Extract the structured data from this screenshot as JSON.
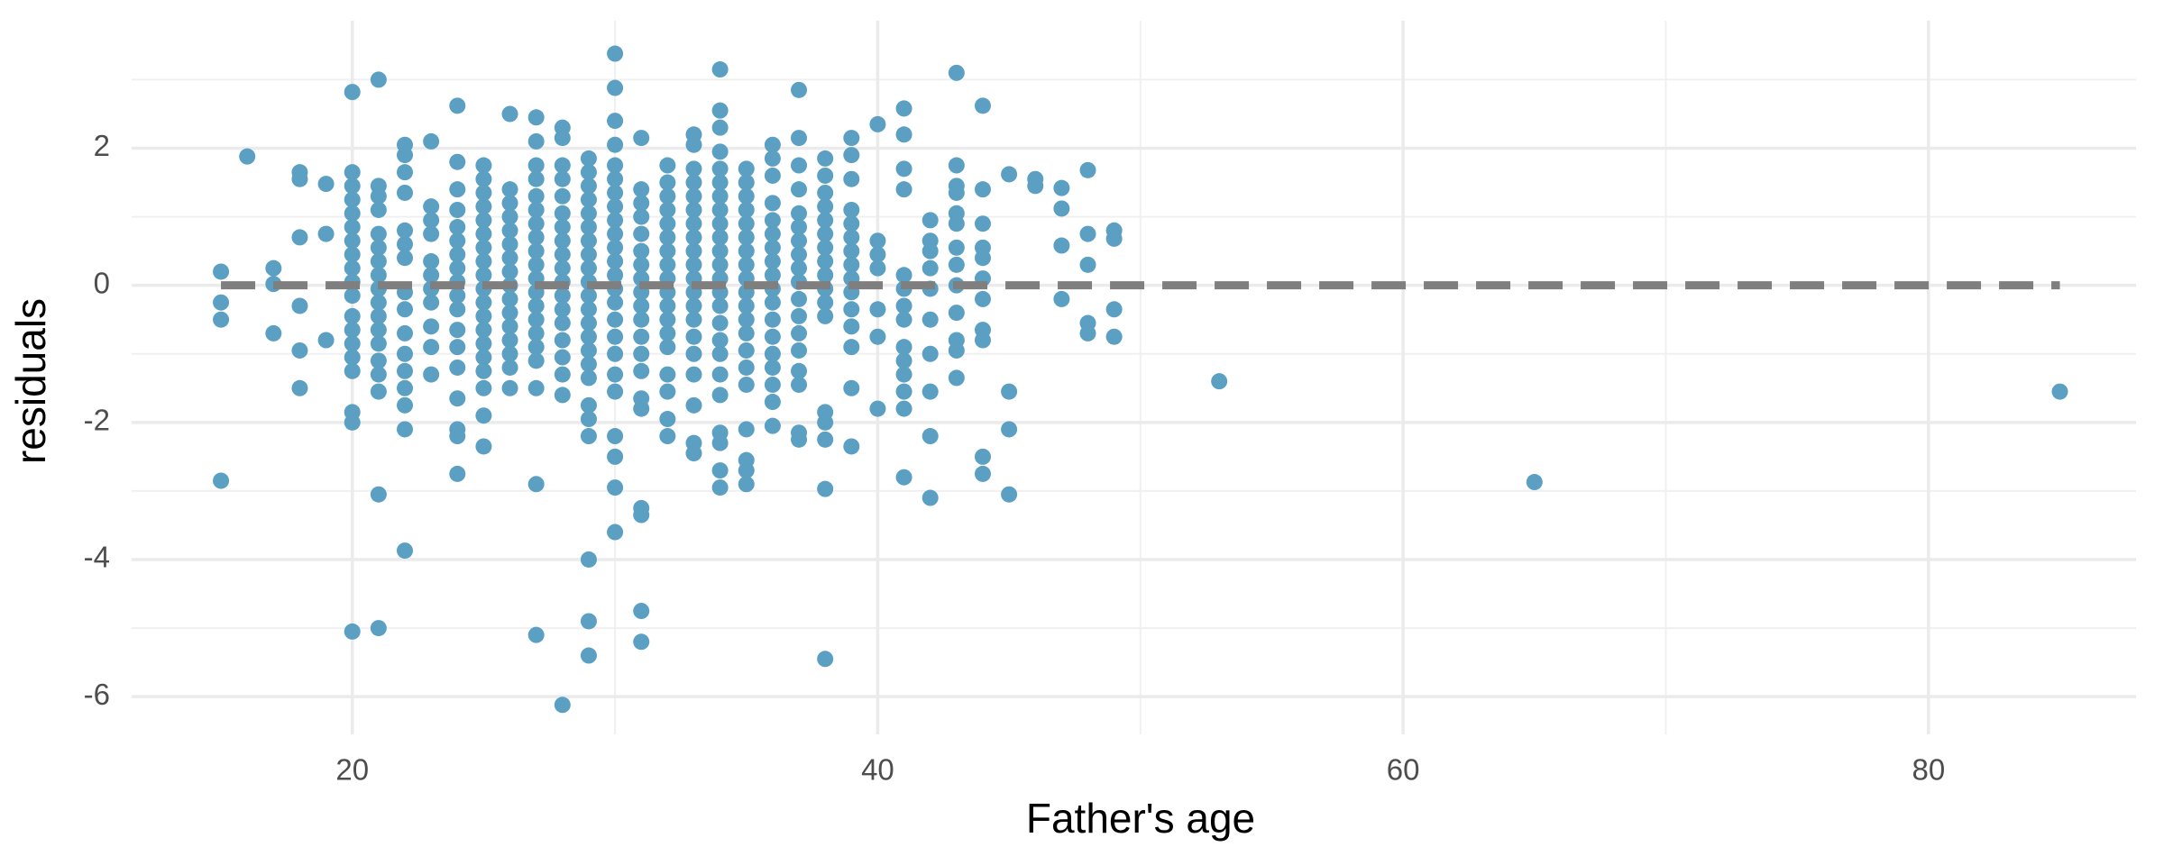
{
  "chart_data": {
    "type": "scatter",
    "x_label": "Father's age",
    "y_label": "residuals",
    "color": "#5b9fc3",
    "xlim": [
      11.6,
      87.9
    ],
    "ylim": [
      -6.55,
      3.86
    ],
    "xticks": [
      20,
      40,
      60,
      80
    ],
    "yticks": [
      -6,
      -4,
      -2,
      0,
      2
    ],
    "x_minor_ticks": [
      30,
      50,
      70
    ],
    "y_minor_ticks": [
      -5,
      -3,
      -1,
      1,
      3
    ],
    "grid": true,
    "reference_line": {
      "y": 0,
      "color": "#7f7f7f",
      "style": "dashed"
    },
    "groups": [
      {
        "x": 15,
        "values": [
          0.2,
          -0.25,
          -0.5,
          -2.85
        ]
      },
      {
        "x": 16,
        "values": [
          1.88
        ]
      },
      {
        "x": 17,
        "values": [
          0.25,
          0.02,
          -0.7
        ]
      },
      {
        "x": 18,
        "values": [
          1.65,
          1.55,
          0.7,
          -0.3,
          -0.95,
          -1.5
        ]
      },
      {
        "x": 19,
        "values": [
          1.48,
          0.75,
          -0.8
        ]
      },
      {
        "x": 20,
        "values": [
          2.82,
          1.65,
          1.45,
          1.25,
          1.05,
          0.85,
          0.65,
          0.45,
          0.25,
          0.05,
          -0.15,
          -0.45,
          -0.65,
          -0.85,
          -1.05,
          -1.25,
          -1.85,
          -2.0,
          -5.05
        ]
      },
      {
        "x": 21,
        "values": [
          3.0,
          1.45,
          1.3,
          1.1,
          0.75,
          0.55,
          0.35,
          0.15,
          -0.05,
          -0.25,
          -0.45,
          -0.65,
          -0.85,
          -1.1,
          -1.3,
          -1.55,
          -3.05,
          -5.0
        ]
      },
      {
        "x": 22,
        "values": [
          2.05,
          1.9,
          1.65,
          1.35,
          0.8,
          0.6,
          0.4,
          -0.1,
          -0.35,
          -0.7,
          -1.0,
          -1.25,
          -1.5,
          -1.75,
          -2.1,
          -3.87
        ]
      },
      {
        "x": 23,
        "values": [
          2.1,
          1.15,
          0.95,
          0.75,
          0.35,
          0.15,
          -0.05,
          -0.25,
          -0.6,
          -0.9,
          -1.3
        ]
      },
      {
        "x": 24,
        "values": [
          2.62,
          1.8,
          1.4,
          1.1,
          0.85,
          0.65,
          0.45,
          0.25,
          0.05,
          -0.15,
          -0.35,
          -0.65,
          -0.9,
          -1.2,
          -1.65,
          -2.1,
          -2.2,
          -2.75
        ]
      },
      {
        "x": 25,
        "values": [
          1.75,
          1.55,
          1.35,
          1.15,
          0.95,
          0.75,
          0.55,
          0.35,
          0.15,
          -0.05,
          -0.25,
          -0.45,
          -0.65,
          -0.85,
          -1.05,
          -1.25,
          -1.5,
          -1.9,
          -2.35
        ]
      },
      {
        "x": 26,
        "values": [
          2.5,
          1.4,
          1.2,
          1.0,
          0.8,
          0.6,
          0.4,
          0.2,
          0.0,
          -0.2,
          -0.4,
          -0.6,
          -0.8,
          -1.0,
          -1.2,
          -1.5
        ]
      },
      {
        "x": 27,
        "values": [
          2.45,
          2.1,
          1.75,
          1.55,
          1.3,
          1.1,
          0.9,
          0.7,
          0.5,
          0.3,
          0.1,
          -0.1,
          -0.3,
          -0.5,
          -0.7,
          -0.9,
          -1.1,
          -1.5,
          -2.9,
          -5.1
        ]
      },
      {
        "x": 28,
        "values": [
          2.3,
          2.15,
          1.75,
          1.55,
          1.3,
          1.05,
          0.85,
          0.65,
          0.45,
          0.25,
          0.05,
          -0.15,
          -0.35,
          -0.55,
          -0.8,
          -1.05,
          -1.3,
          -1.6,
          -6.12
        ]
      },
      {
        "x": 29,
        "values": [
          1.85,
          1.65,
          1.45,
          1.25,
          1.05,
          0.85,
          0.65,
          0.45,
          0.25,
          0.05,
          -0.15,
          -0.35,
          -0.55,
          -0.75,
          -0.95,
          -1.15,
          -1.35,
          -1.75,
          -1.95,
          -2.2,
          -4.0,
          -4.9,
          -5.4
        ]
      },
      {
        "x": 30,
        "values": [
          3.38,
          2.88,
          2.4,
          2.05,
          1.75,
          1.55,
          1.35,
          1.15,
          0.95,
          0.75,
          0.55,
          0.35,
          0.15,
          -0.05,
          -0.25,
          -0.5,
          -0.75,
          -1.0,
          -1.3,
          -1.55,
          -2.2,
          -2.5,
          -2.95,
          -3.6
        ]
      },
      {
        "x": 31,
        "values": [
          2.15,
          1.4,
          1.2,
          1.0,
          0.75,
          0.5,
          0.3,
          0.1,
          -0.1,
          -0.3,
          -0.5,
          -0.75,
          -1.0,
          -1.25,
          -1.65,
          -1.8,
          -3.25,
          -3.35,
          -4.75,
          -5.2
        ]
      },
      {
        "x": 32,
        "values": [
          1.75,
          1.5,
          1.3,
          1.1,
          0.9,
          0.7,
          0.5,
          0.3,
          0.1,
          -0.1,
          -0.3,
          -0.5,
          -0.7,
          -0.9,
          -1.3,
          -1.55,
          -1.95,
          -2.2
        ]
      },
      {
        "x": 33,
        "values": [
          2.2,
          2.05,
          1.7,
          1.5,
          1.3,
          1.1,
          0.9,
          0.7,
          0.5,
          0.3,
          0.1,
          -0.1,
          -0.3,
          -0.5,
          -0.75,
          -1.0,
          -1.3,
          -1.75,
          -2.3,
          -2.45
        ]
      },
      {
        "x": 34,
        "values": [
          3.15,
          2.55,
          2.3,
          1.95,
          1.7,
          1.5,
          1.3,
          1.1,
          0.9,
          0.7,
          0.5,
          0.3,
          0.1,
          -0.1,
          -0.3,
          -0.55,
          -0.8,
          -1.0,
          -1.3,
          -1.6,
          -2.15,
          -2.3,
          -2.7,
          -2.95
        ]
      },
      {
        "x": 35,
        "values": [
          1.7,
          1.5,
          1.3,
          1.1,
          0.9,
          0.7,
          0.5,
          0.3,
          0.1,
          -0.1,
          -0.3,
          -0.5,
          -0.7,
          -0.95,
          -1.2,
          -1.45,
          -2.1,
          -2.55,
          -2.7,
          -2.9
        ]
      },
      {
        "x": 36,
        "values": [
          2.05,
          1.85,
          1.6,
          1.2,
          0.95,
          0.75,
          0.55,
          0.35,
          0.15,
          -0.05,
          -0.25,
          -0.5,
          -0.75,
          -1.0,
          -1.2,
          -1.45,
          -1.7,
          -2.05
        ]
      },
      {
        "x": 37,
        "values": [
          2.85,
          2.15,
          1.75,
          1.4,
          1.05,
          0.85,
          0.65,
          0.45,
          0.25,
          0.05,
          -0.2,
          -0.45,
          -0.7,
          -0.95,
          -1.25,
          -1.45,
          -2.15,
          -2.25
        ]
      },
      {
        "x": 38,
        "values": [
          1.85,
          1.6,
          1.35,
          1.15,
          0.95,
          0.75,
          0.55,
          0.35,
          0.15,
          -0.05,
          -0.25,
          -0.45,
          -1.85,
          -2.0,
          -2.25,
          -2.97,
          -5.45
        ]
      },
      {
        "x": 39,
        "values": [
          2.15,
          1.9,
          1.55,
          1.1,
          0.9,
          0.7,
          0.5,
          0.3,
          0.1,
          -0.1,
          -0.35,
          -0.6,
          -0.9,
          -1.5,
          -2.35
        ]
      },
      {
        "x": 40,
        "values": [
          2.35,
          0.65,
          0.45,
          0.25,
          -0.35,
          -0.75,
          -1.8
        ]
      },
      {
        "x": 41,
        "values": [
          2.58,
          2.2,
          1.7,
          1.4,
          0.15,
          -0.05,
          -0.3,
          -0.5,
          -0.9,
          -1.1,
          -1.3,
          -1.55,
          -1.8,
          -2.8
        ]
      },
      {
        "x": 42,
        "values": [
          0.95,
          0.65,
          0.5,
          0.25,
          -0.05,
          -0.5,
          -1.0,
          -1.55,
          -2.2,
          -3.1
        ]
      },
      {
        "x": 43,
        "values": [
          3.1,
          1.75,
          1.45,
          1.35,
          1.05,
          0.9,
          0.55,
          0.3,
          0.0,
          -0.4,
          -0.8,
          -0.95,
          -1.35
        ]
      },
      {
        "x": 44,
        "values": [
          2.62,
          1.4,
          0.9,
          0.55,
          0.4,
          0.1,
          -0.2,
          -0.65,
          -0.8,
          -2.5,
          -2.75
        ]
      },
      {
        "x": 45,
        "values": [
          1.62,
          -1.55,
          -2.1,
          -3.05
        ]
      },
      {
        "x": 46,
        "values": [
          1.55,
          1.45
        ]
      },
      {
        "x": 47,
        "values": [
          1.42,
          1.12,
          0.58,
          -0.2
        ]
      },
      {
        "x": 48,
        "values": [
          1.68,
          0.75,
          0.3,
          -0.55,
          -0.7
        ]
      },
      {
        "x": 49,
        "values": [
          0.8,
          0.68,
          -0.35,
          -0.75
        ]
      },
      {
        "x": 53,
        "values": [
          -1.4
        ]
      },
      {
        "x": 65,
        "values": [
          -2.87
        ]
      },
      {
        "x": 85,
        "values": [
          -1.55
        ]
      }
    ]
  }
}
